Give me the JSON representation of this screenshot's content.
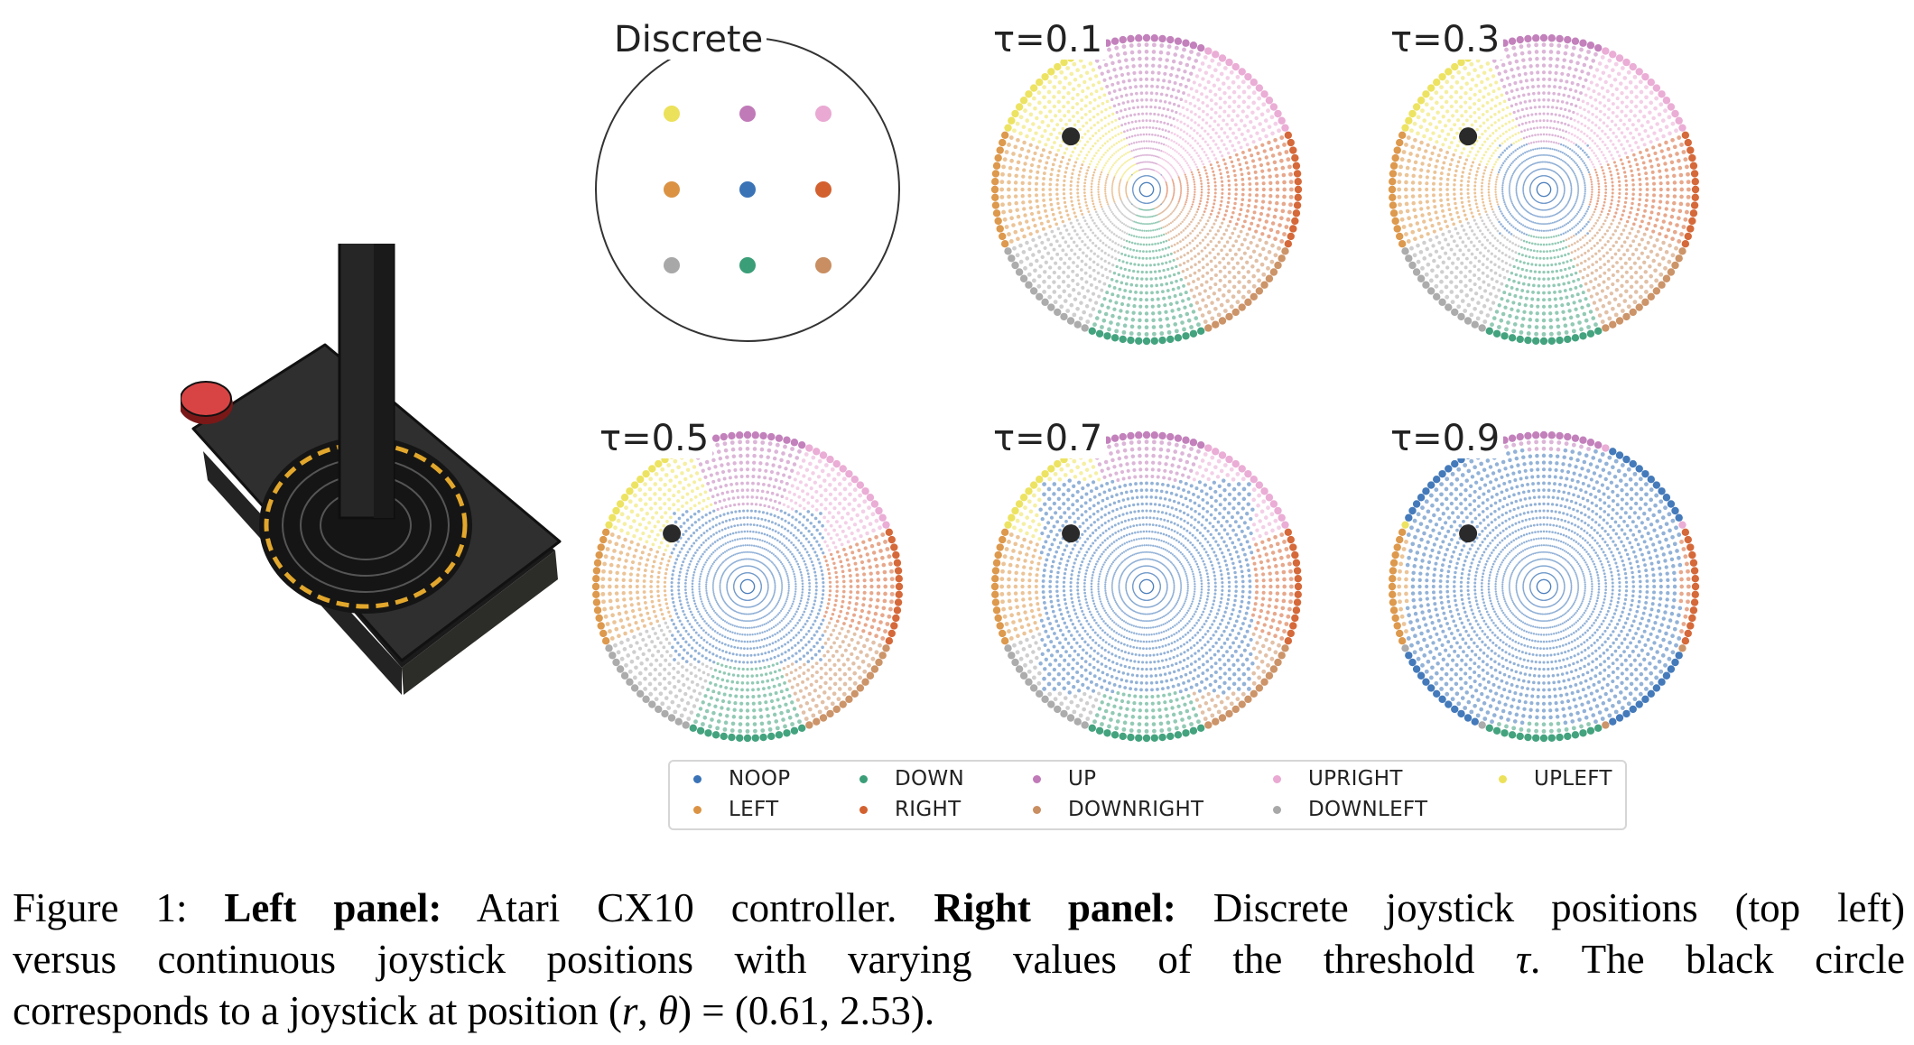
{
  "colors": {
    "NOOP": "#3a73b6",
    "DOWN": "#3a9e78",
    "UP": "#c07ab8",
    "UPRIGHT": "#e9a9d3",
    "UPLEFT": "#ece15a",
    "LEFT": "#db9343",
    "RIGHT": "#d3612f",
    "DOWNRIGHT": "#c98e61",
    "DOWNLEFT": "#a8a8a8",
    "marker": "#2a2a2a"
  },
  "panels": [
    {
      "id": "discrete",
      "title": "Discrete",
      "type": "discrete"
    },
    {
      "id": "tau01",
      "title": "τ=0.1",
      "tau": 0.1
    },
    {
      "id": "tau03",
      "title": "τ=0.3",
      "tau": 0.3
    },
    {
      "id": "tau05",
      "title": "τ=0.5",
      "tau": 0.5
    },
    {
      "id": "tau07",
      "title": "τ=0.7",
      "tau": 0.7
    },
    {
      "id": "tau09",
      "title": "τ=0.9",
      "tau": 0.9
    }
  ],
  "chart_data": {
    "type": "scatter",
    "panels": [
      "Discrete",
      "τ=0.1",
      "τ=0.3",
      "τ=0.5",
      "τ=0.7",
      "τ=0.9"
    ],
    "tau_values": [
      0.1,
      0.3,
      0.5,
      0.7,
      0.9
    ],
    "discrete_grid": [
      [
        "UPLEFT",
        "UP",
        "UPRIGHT"
      ],
      [
        "LEFT",
        "NOOP",
        "RIGHT"
      ],
      [
        "DOWNLEFT",
        "DOWN",
        "DOWNRIGHT"
      ]
    ],
    "marker_position": {
      "r": 0.61,
      "theta": 2.53
    },
    "legend": [
      "NOOP",
      "DOWN",
      "UP",
      "UPRIGHT",
      "UPLEFT",
      "LEFT",
      "RIGHT",
      "DOWNRIGHT",
      "DOWNLEFT"
    ],
    "legend_location": "bottom-center"
  },
  "legend": [
    {
      "key": "NOOP",
      "label": "NOOP"
    },
    {
      "key": "DOWN",
      "label": "DOWN"
    },
    {
      "key": "UP",
      "label": "UP"
    },
    {
      "key": "UPRIGHT",
      "label": "UPRIGHT"
    },
    {
      "key": "UPLEFT",
      "label": "UPLEFT"
    },
    {
      "key": "LEFT",
      "label": "LEFT"
    },
    {
      "key": "RIGHT",
      "label": "RIGHT"
    },
    {
      "key": "DOWNRIGHT",
      "label": "DOWNRIGHT"
    },
    {
      "key": "DOWNLEFT",
      "label": "DOWNLEFT"
    }
  ],
  "caption": {
    "label": "Figure 1:",
    "left_bold": "Left panel:",
    "left_text": "Atari CX10 controller.",
    "right_bold": "Right panel:",
    "right_text_1": "Discrete joystick positions (top left)",
    "line2_a": "versus continuous joystick positions with varying values of the threshold",
    "tau_symbol": "τ",
    "line2_b": ".  The black circle",
    "line3_a": "corresponds to a joystick at position",
    "math_r": "r",
    "math_theta": "θ",
    "math_values": "(0.61, 2.53)",
    "line3_end": "."
  }
}
